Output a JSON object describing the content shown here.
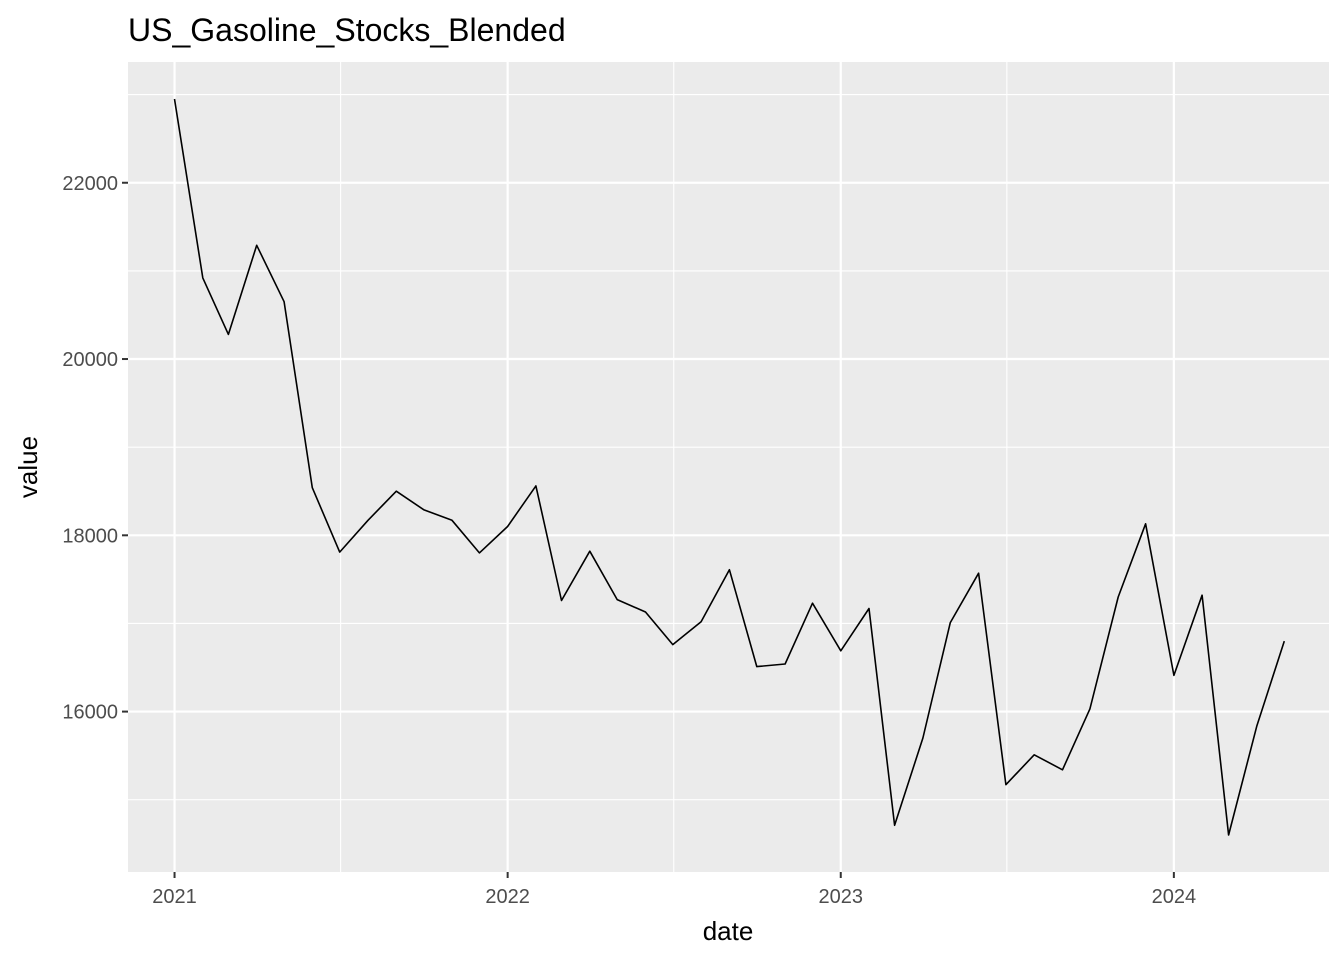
{
  "chart_data": {
    "type": "line",
    "title": "US_Gasoline_Stocks_Blended",
    "xlabel": "date",
    "ylabel": "value",
    "x_tick_labels": [
      "2021",
      "2022",
      "2023",
      "2024"
    ],
    "y_tick_labels": [
      "16000",
      "18000",
      "20000",
      "22000"
    ],
    "y_ticks": [
      16000,
      18000,
      20000,
      22000
    ],
    "ylim": [
      14180,
      23370
    ],
    "xlim": [
      "2020-11-11",
      "2024-06-19"
    ],
    "grid": true,
    "legend": "none",
    "series": [
      {
        "x": [
          "2021-01-01",
          "2021-02-01",
          "2021-03-01",
          "2021-04-01",
          "2021-05-01",
          "2021-06-01",
          "2021-07-01",
          "2021-08-01",
          "2021-09-01",
          "2021-10-01",
          "2021-11-01",
          "2021-12-01",
          "2022-01-01",
          "2022-02-01",
          "2022-03-01",
          "2022-04-01",
          "2022-05-01",
          "2022-06-01",
          "2022-07-01",
          "2022-08-01",
          "2022-09-01",
          "2022-10-01",
          "2022-11-01",
          "2022-12-01",
          "2023-01-01",
          "2023-02-01",
          "2023-03-01",
          "2023-04-01",
          "2023-05-01",
          "2023-06-01",
          "2023-07-01",
          "2023-08-01",
          "2023-09-01",
          "2023-10-01",
          "2023-11-01",
          "2023-12-01",
          "2024-01-01",
          "2024-02-01",
          "2024-03-01",
          "2024-04-01",
          "2024-05-01"
        ],
        "values": [
          22950,
          20920,
          20280,
          21290,
          20650,
          18540,
          17810,
          18170,
          18500,
          18290,
          18170,
          17800,
          18100,
          18560,
          17260,
          17820,
          17270,
          17130,
          16760,
          17020,
          17610,
          16510,
          16540,
          17230,
          16690,
          17170,
          14710,
          15700,
          17010,
          17570,
          15170,
          15510,
          15340,
          16030,
          17300,
          18130,
          16410,
          17320,
          14600,
          15840,
          16800
        ]
      }
    ]
  },
  "colors": {
    "panel": "#ebebeb",
    "grid_major": "#ffffff",
    "line": "#000000",
    "tick": "#333333"
  }
}
